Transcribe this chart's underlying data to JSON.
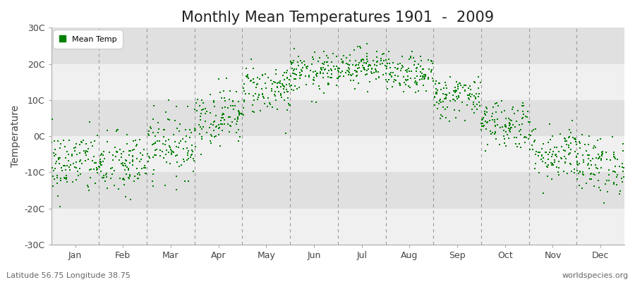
{
  "title": "Monthly Mean Temperatures 1901  -  2009",
  "ylabel": "Temperature",
  "bottom_left_text": "Latitude 56.75 Longitude 38.75",
  "bottom_right_text": "worldspecies.org",
  "ylim": [
    -30,
    30
  ],
  "yticks": [
    -30,
    -20,
    -10,
    0,
    10,
    20,
    30
  ],
  "ytick_labels": [
    "-30C",
    "-20C",
    "-10C",
    "0C",
    "10C",
    "20C",
    "30C"
  ],
  "months": [
    "Jan",
    "Feb",
    "Mar",
    "Apr",
    "May",
    "Jun",
    "Jul",
    "Aug",
    "Sep",
    "Oct",
    "Nov",
    "Dec"
  ],
  "dot_color": "#008000",
  "dot_size": 3,
  "background_color": "#ffffff",
  "plot_bg_color": "#ffffff",
  "band_color_light": "#f0f0f0",
  "band_color_dark": "#e0e0e0",
  "dashed_line_color": "#999999",
  "title_fontsize": 15,
  "axis_label_fontsize": 10,
  "tick_fontsize": 9,
  "monthly_means": [
    -7.5,
    -8.0,
    -2.5,
    5.5,
    13.0,
    17.5,
    19.5,
    17.0,
    11.0,
    3.5,
    -4.5,
    -8.0
  ],
  "monthly_stds": [
    4.5,
    4.5,
    4.5,
    4.0,
    3.5,
    2.8,
    2.5,
    2.5,
    3.0,
    3.5,
    4.0,
    4.0
  ],
  "n_years": 109
}
